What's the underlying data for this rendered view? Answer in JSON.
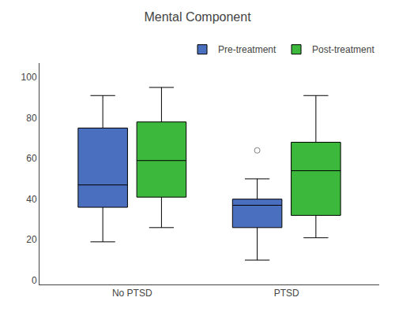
{
  "chart_data": {
    "type": "box",
    "title": "Mental Component",
    "categories": [
      "No PTSD",
      "PTSD"
    ],
    "series": [
      {
        "name": "Pre-treatment",
        "color": "#4a6fbe",
        "whislo": [
          19,
          10
        ],
        "q1": [
          36,
          26
        ],
        "med": [
          47,
          37
        ],
        "q3": [
          75,
          40
        ],
        "whishi": [
          91,
          50
        ],
        "fliers": [
          [],
          [
            64
          ]
        ]
      },
      {
        "name": "Post-treatment",
        "color": "#3cb83c",
        "whislo": [
          26,
          21
        ],
        "q1": [
          41,
          32
        ],
        "med": [
          59,
          54
        ],
        "q3": [
          78,
          68
        ],
        "whishi": [
          95,
          91
        ],
        "fliers": [
          [],
          []
        ]
      }
    ],
    "ylim": [
      -2,
      107
    ],
    "yticks": [
      0,
      20,
      40,
      60,
      80,
      100
    ],
    "grid": false,
    "legend": "top"
  }
}
